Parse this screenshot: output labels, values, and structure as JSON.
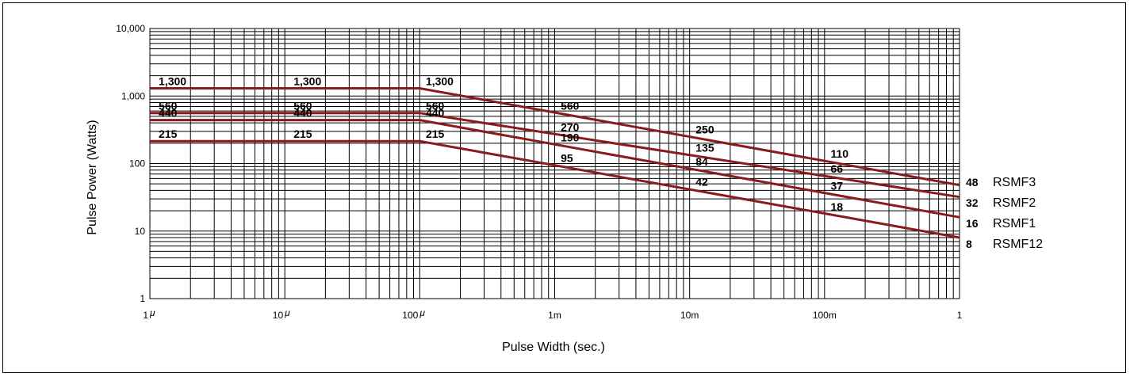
{
  "chart_data": {
    "type": "line",
    "xlabel": "Pulse Width (sec.)",
    "ylabel": "Pulse Power (Watts)",
    "x_scale": "log",
    "y_scale": "log",
    "xlim": [
      1e-06,
      1
    ],
    "ylim": [
      1,
      10000
    ],
    "grid": true,
    "x_ticks": [
      {
        "value": 1e-06,
        "label": "1"
      },
      {
        "value": 1e-05,
        "label": "10"
      },
      {
        "value": 0.0001,
        "label": "100"
      },
      {
        "value": 0.001,
        "label": "1m"
      },
      {
        "value": 0.01,
        "label": "10m"
      },
      {
        "value": 0.1,
        "label": "100m"
      },
      {
        "value": 1,
        "label": "1"
      }
    ],
    "micro_symbol": "μ",
    "y_ticks": [
      {
        "value": 1,
        "label": "1"
      },
      {
        "value": 10,
        "label": "10"
      },
      {
        "value": 100,
        "label": "100"
      },
      {
        "value": 1000,
        "label": "1,000"
      },
      {
        "value": 10000,
        "label": "10,000"
      }
    ],
    "line_color": "#8b1a1a",
    "series": [
      {
        "name": "RSMF3",
        "end_label": "48",
        "points": [
          [
            1e-06,
            1300
          ],
          [
            0.0001,
            1300
          ],
          [
            1,
            48
          ]
        ],
        "labels": [
          {
            "x": 1.1e-06,
            "y": 1300,
            "text": "1,300"
          },
          {
            "x": 1.1e-05,
            "y": 1300,
            "text": "1,300"
          },
          {
            "x": 0.000105,
            "y": 1300,
            "text": "1,300"
          },
          {
            "x": 0.00105,
            "y": 560,
            "text": "560"
          },
          {
            "x": 0.0105,
            "y": 250,
            "text": "250"
          },
          {
            "x": 0.105,
            "y": 110,
            "text": "110"
          }
        ]
      },
      {
        "name": "RSMF2",
        "end_label": "32",
        "points": [
          [
            1e-06,
            560
          ],
          [
            0.0001,
            560
          ],
          [
            1,
            32
          ]
        ],
        "labels": [
          {
            "x": 1.1e-06,
            "y": 560,
            "text": "560"
          },
          {
            "x": 1.1e-05,
            "y": 560,
            "text": "560"
          },
          {
            "x": 0.000105,
            "y": 560,
            "text": "560"
          },
          {
            "x": 0.00105,
            "y": 270,
            "text": "270"
          },
          {
            "x": 0.0105,
            "y": 135,
            "text": "135"
          },
          {
            "x": 0.105,
            "y": 66,
            "text": "66"
          }
        ]
      },
      {
        "name": "RSMF1",
        "end_label": "16",
        "points": [
          [
            1e-06,
            440
          ],
          [
            0.0001,
            440
          ],
          [
            1,
            16
          ]
        ],
        "labels": [
          {
            "x": 1.1e-06,
            "y": 440,
            "text": "440"
          },
          {
            "x": 1.1e-05,
            "y": 440,
            "text": "440"
          },
          {
            "x": 0.000105,
            "y": 440,
            "text": "440"
          },
          {
            "x": 0.00105,
            "y": 190,
            "text": "190"
          },
          {
            "x": 0.0105,
            "y": 84,
            "text": "84"
          },
          {
            "x": 0.105,
            "y": 37,
            "text": "37"
          }
        ]
      },
      {
        "name": "RSMF12",
        "end_label": "8",
        "points": [
          [
            1e-06,
            215
          ],
          [
            0.0001,
            215
          ],
          [
            1,
            8
          ]
        ],
        "labels": [
          {
            "x": 1.1e-06,
            "y": 215,
            "text": "215"
          },
          {
            "x": 1.1e-05,
            "y": 215,
            "text": "215"
          },
          {
            "x": 0.000105,
            "y": 215,
            "text": "215"
          },
          {
            "x": 0.00105,
            "y": 95,
            "text": "95"
          },
          {
            "x": 0.0105,
            "y": 42,
            "text": "42"
          },
          {
            "x": 0.105,
            "y": 18,
            "text": "18"
          }
        ]
      }
    ]
  }
}
